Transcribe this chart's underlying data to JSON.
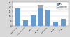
{
  "categories": [
    "Construction",
    "Food industries",
    "Steel",
    "Chemical",
    "Automobile",
    "Cement",
    "Others"
  ],
  "values_blue": [
    18,
    6,
    11,
    18,
    17,
    4,
    7
  ],
  "values_grey": [
    0,
    0,
    0,
    4,
    0,
    0,
    0
  ],
  "bar_color_blue": "#6699cc",
  "bar_color_grey": "#aaaaaa",
  "ylim": [
    0,
    25
  ],
  "yticks": [
    0,
    5,
    10,
    15,
    20,
    25
  ],
  "legend_labels": [
    "Gas",
    "Electricity"
  ],
  "background_color": "#d8d8d8",
  "plot_bg": "#ffffff",
  "title": ""
}
